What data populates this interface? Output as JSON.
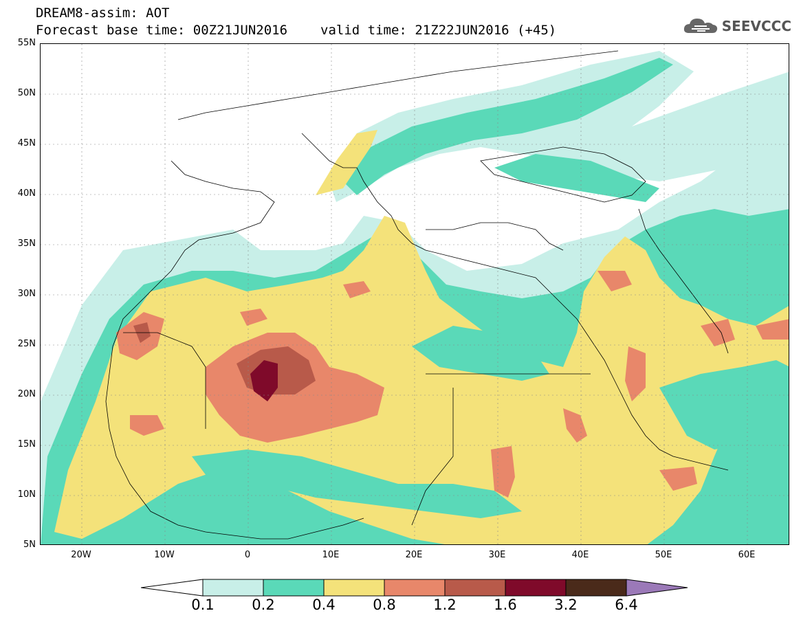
{
  "header": {
    "line1": "DREAM8-assim: AOT",
    "line2_base": "Forecast base time: 00Z21JUN2016",
    "line2_valid": "valid time: 21Z22JUN2016 (+45)"
  },
  "logo": {
    "text": "SEEVCCC",
    "icon": "cloud-logo-icon"
  },
  "map": {
    "lat_labels": [
      "55N",
      "50N",
      "45N",
      "40N",
      "35N",
      "30N",
      "25N",
      "20N",
      "15N",
      "10N",
      "5N"
    ],
    "lon_labels": [
      "20W",
      "10W",
      "0",
      "10E",
      "20E",
      "30E",
      "40E",
      "50E",
      "60E"
    ],
    "colors": {
      "c01": "#c8efe8",
      "c02": "#5ad9b8",
      "c04": "#f4e27a",
      "c08": "#e8876a",
      "c12": "#b85a4a",
      "c16": "#7f0a2a",
      "c32": "#4a2a1a",
      "c64": "#9b79b8"
    }
  },
  "colorbar": {
    "labels": [
      "0.1",
      "0.2",
      "0.4",
      "0.8",
      "1.2",
      "1.6",
      "3.2",
      "6.4"
    ]
  }
}
